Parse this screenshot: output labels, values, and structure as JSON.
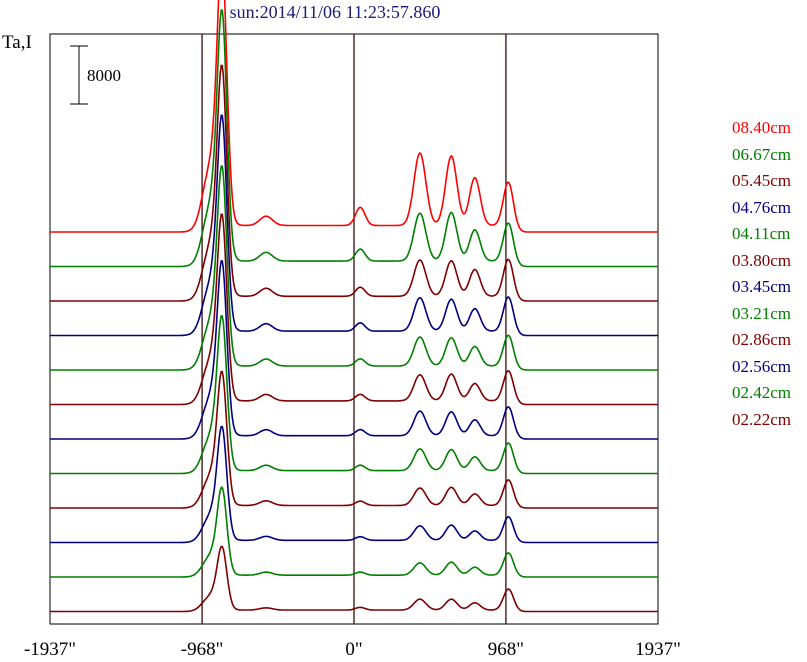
{
  "title": "sun:2014/11/06 11:23:57.860",
  "y_axis_label": "Ta,I",
  "scale_bar_label": "8000",
  "x_tick_labels": [
    "-1937\"",
    "-968\"",
    "0\"",
    "968\"",
    "1937\""
  ],
  "colors": {
    "red": "#ff0000",
    "green": "#008000",
    "darkred": "#800000",
    "navy": "#000080"
  },
  "chart_data": {
    "type": "line",
    "title": "sun:2014/11/06 11:23:57.860",
    "ylabel": "Ta,I",
    "xlim": [
      -1937,
      1937
    ],
    "x_ticks": [
      -1937,
      -968,
      0,
      968,
      1937
    ],
    "vertical_lines": [
      -968,
      0,
      968
    ],
    "scale_bar": 8000,
    "stacked_offset_profiles": true,
    "legend_position": "right",
    "series": [
      {
        "name": "08.40cm",
        "color": "#ff0000",
        "limb_peak": 32000,
        "disk_level": 900,
        "disk_peaks": [
          10000,
          9600,
          6600,
          6400
        ]
      },
      {
        "name": "06.67cm",
        "color": "#008000",
        "limb_peak": 30000,
        "disk_level": 750,
        "disk_peaks": [
          6600,
          6700,
          4300,
          5600
        ]
      },
      {
        "name": "05.45cm",
        "color": "#800000",
        "limb_peak": 27600,
        "disk_level": 650,
        "disk_peaks": [
          5000,
          4900,
          3700,
          5400
        ]
      },
      {
        "name": "04.76cm",
        "color": "#000080",
        "limb_peak": 25800,
        "disk_level": 600,
        "disk_peaks": [
          4600,
          4400,
          3100,
          5000
        ]
      },
      {
        "name": "04.11cm",
        "color": "#008000",
        "limb_peak": 23900,
        "disk_level": 550,
        "disk_peaks": [
          4000,
          3900,
          2700,
          4500
        ]
      },
      {
        "name": "03.80cm",
        "color": "#800000",
        "limb_peak": 22300,
        "disk_level": 500,
        "disk_peaks": [
          3600,
          3700,
          2400,
          4400
        ]
      },
      {
        "name": "03.45cm",
        "color": "#000080",
        "limb_peak": 20900,
        "disk_level": 450,
        "disk_peaks": [
          3400,
          3300,
          2200,
          4200
        ]
      },
      {
        "name": "03.21cm",
        "color": "#008000",
        "limb_peak": 18500,
        "disk_level": 400,
        "disk_peaks": [
          3000,
          2900,
          1900,
          4000
        ]
      },
      {
        "name": "02.86cm",
        "color": "#800000",
        "limb_peak": 16000,
        "disk_level": 350,
        "disk_peaks": [
          2400,
          2500,
          1600,
          3700
        ]
      },
      {
        "name": "02.56cm",
        "color": "#000080",
        "limb_peak": 13600,
        "disk_level": 300,
        "disk_peaks": [
          2000,
          2100,
          1300,
          3400
        ]
      },
      {
        "name": "02.42cm",
        "color": "#008000",
        "limb_peak": 10500,
        "disk_level": 250,
        "disk_peaks": [
          1700,
          1800,
          1100,
          3200
        ]
      },
      {
        "name": "02.22cm",
        "color": "#800000",
        "limb_peak": 7600,
        "disk_level": 200,
        "disk_peaks": [
          1500,
          1500,
          1000,
          3000
        ]
      }
    ]
  }
}
